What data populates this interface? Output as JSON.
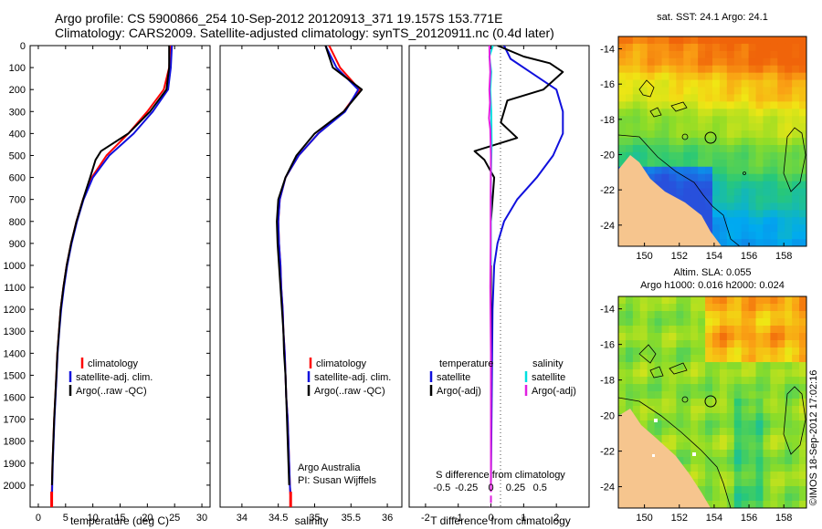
{
  "header": {
    "line1": "Argo profile: CS 5900866_254 10-Sep-2012 20120913_371 19.157S 153.771E",
    "line2": "Climatology: CARS2009. Satellite-adjusted climatology: synTS_20120911.nc (0.4d later)"
  },
  "colors": {
    "climatology": "#ff0000",
    "satellite": "#1010dd",
    "argo": "#000000",
    "satellite_s": "#00e0e0",
    "argo_s": "#e020e0"
  },
  "chart_data": [
    {
      "type": "line",
      "panel": "temperature",
      "xlabel": "temperature (deg C)",
      "ylabel": "",
      "xlim": [
        -1.5,
        31.5
      ],
      "ylim": [
        2100,
        0
      ],
      "xticks": [
        0,
        5,
        10,
        15,
        20,
        25,
        30
      ],
      "yticks": [
        0,
        100,
        200,
        300,
        400,
        500,
        600,
        700,
        800,
        900,
        1000,
        1100,
        1200,
        1300,
        1400,
        1500,
        1600,
        1700,
        1800,
        1900,
        2000
      ],
      "legend": [
        "climatology",
        "satellite-adj. clim.",
        "Argo(..raw -QC)"
      ],
      "series": [
        {
          "name": "climatology",
          "color_key": "climatology",
          "points": [
            [
              24.2,
              0
            ],
            [
              24.0,
              100
            ],
            [
              23.0,
              200
            ],
            [
              20.0,
              300
            ],
            [
              16.5,
              400
            ],
            [
              12.5,
              500
            ],
            [
              9.8,
              600
            ],
            [
              8.2,
              700
            ],
            [
              7.0,
              800
            ],
            [
              6.0,
              900
            ],
            [
              5.2,
              1000
            ],
            [
              4.6,
              1100
            ],
            [
              4.1,
              1200
            ],
            [
              3.8,
              1300
            ],
            [
              3.5,
              1400
            ],
            [
              3.3,
              1500
            ],
            [
              3.1,
              1600
            ],
            [
              2.9,
              1700
            ],
            [
              2.75,
              1800
            ],
            [
              2.6,
              1900
            ],
            [
              2.5,
              2000
            ],
            [
              2.45,
              2060
            ]
          ]
        },
        {
          "name": "satellite-adj. clim.",
          "color_key": "satellite",
          "points": [
            [
              24.5,
              0
            ],
            [
              24.3,
              100
            ],
            [
              23.8,
              200
            ],
            [
              21.0,
              300
            ],
            [
              17.5,
              400
            ],
            [
              13.0,
              500
            ],
            [
              10.0,
              600
            ],
            [
              8.3,
              700
            ],
            [
              7.1,
              800
            ],
            [
              6.1,
              900
            ],
            [
              5.3,
              1000
            ],
            [
              4.7,
              1100
            ],
            [
              4.2,
              1200
            ],
            [
              3.85,
              1300
            ],
            [
              3.55,
              1400
            ],
            [
              3.35,
              1500
            ],
            [
              3.15,
              1600
            ],
            [
              2.95,
              1700
            ],
            [
              2.8,
              1800
            ],
            [
              2.65,
              1900
            ],
            [
              2.55,
              2000
            ],
            [
              2.5,
              2060
            ]
          ]
        },
        {
          "name": "Argo(..raw -QC)",
          "color_key": "argo",
          "points": [
            [
              24.0,
              0
            ],
            [
              24.0,
              100
            ],
            [
              23.5,
              200
            ],
            [
              20.5,
              300
            ],
            [
              16.5,
              400
            ],
            [
              11.5,
              480
            ],
            [
              10.5,
              520
            ],
            [
              9.5,
              600
            ],
            [
              8.2,
              700
            ],
            [
              7.0,
              800
            ],
            [
              6.0,
              900
            ],
            [
              5.2,
              1000
            ],
            [
              4.6,
              1100
            ],
            [
              4.1,
              1200
            ],
            [
              3.8,
              1300
            ],
            [
              3.5,
              1400
            ],
            [
              3.3,
              1500
            ],
            [
              3.1,
              1600
            ],
            [
              2.9,
              1700
            ],
            [
              2.75,
              1800
            ],
            [
              2.6,
              1900
            ],
            [
              2.5,
              2000
            ]
          ]
        }
      ]
    },
    {
      "type": "line",
      "panel": "salinity",
      "xlabel": "salinity",
      "xlim": [
        33.7,
        36.2
      ],
      "ylim": [
        2100,
        0
      ],
      "xticks": [
        34,
        34.5,
        35,
        35.5,
        36
      ],
      "legend": [
        "climatology",
        "satellite-adj. clim.",
        "Argo(..raw -QC)"
      ],
      "annotation": [
        "Argo Australia",
        "PI: Susan Wijffels"
      ],
      "series": [
        {
          "name": "climatology",
          "color_key": "climatology",
          "points": [
            [
              35.2,
              0
            ],
            [
              35.35,
              100
            ],
            [
              35.62,
              200
            ],
            [
              35.4,
              300
            ],
            [
              35.05,
              400
            ],
            [
              34.78,
              500
            ],
            [
              34.6,
              600
            ],
            [
              34.52,
              700
            ],
            [
              34.5,
              800
            ],
            [
              34.51,
              900
            ],
            [
              34.53,
              1000
            ],
            [
              34.54,
              1100
            ],
            [
              34.56,
              1200
            ],
            [
              34.57,
              1300
            ],
            [
              34.59,
              1400
            ],
            [
              34.6,
              1500
            ],
            [
              34.61,
              1600
            ],
            [
              34.63,
              1700
            ],
            [
              34.64,
              1800
            ],
            [
              34.65,
              1900
            ],
            [
              34.66,
              2000
            ],
            [
              34.67,
              2060
            ]
          ]
        },
        {
          "name": "satellite-adj. clim.",
          "color_key": "satellite",
          "points": [
            [
              35.15,
              0
            ],
            [
              35.3,
              100
            ],
            [
              35.6,
              200
            ],
            [
              35.42,
              300
            ],
            [
              35.05,
              400
            ],
            [
              34.78,
              500
            ],
            [
              34.6,
              600
            ],
            [
              34.52,
              700
            ],
            [
              34.5,
              800
            ],
            [
              34.51,
              900
            ],
            [
              34.53,
              1000
            ],
            [
              34.54,
              1100
            ],
            [
              34.56,
              1200
            ],
            [
              34.57,
              1300
            ],
            [
              34.59,
              1400
            ],
            [
              34.6,
              1500
            ],
            [
              34.61,
              1600
            ],
            [
              34.63,
              1700
            ],
            [
              34.64,
              1800
            ],
            [
              34.65,
              1900
            ],
            [
              34.66,
              2000
            ],
            [
              34.67,
              2060
            ]
          ]
        },
        {
          "name": "Argo(..raw -QC)",
          "color_key": "argo",
          "points": [
            [
              35.15,
              0
            ],
            [
              35.25,
              100
            ],
            [
              35.65,
              200
            ],
            [
              35.4,
              300
            ],
            [
              35.0,
              400
            ],
            [
              34.75,
              500
            ],
            [
              34.6,
              600
            ],
            [
              34.5,
              700
            ],
            [
              34.48,
              800
            ],
            [
              34.49,
              900
            ],
            [
              34.51,
              1000
            ],
            [
              34.53,
              1100
            ],
            [
              34.55,
              1200
            ],
            [
              34.57,
              1300
            ],
            [
              34.58,
              1400
            ],
            [
              34.6,
              1500
            ],
            [
              34.61,
              1600
            ],
            [
              34.62,
              1700
            ],
            [
              34.63,
              1800
            ],
            [
              34.64,
              1900
            ],
            [
              34.65,
              2000
            ]
          ]
        }
      ]
    },
    {
      "type": "line",
      "panel": "difference",
      "xlabel": "T difference from climatology",
      "xlabel_top": "S difference from climatology",
      "xlim": [
        -2.5,
        3.0
      ],
      "ylim": [
        2100,
        0
      ],
      "xticks": [
        -2,
        -1,
        0,
        1,
        2
      ],
      "xticks_top_labels": [
        "-0.5",
        "-0.25",
        "0",
        "0.25",
        "0.5"
      ],
      "legend_headers": [
        "temperature",
        "salinity"
      ],
      "legend_t": [
        "satellite",
        "Argo(-adj)"
      ],
      "legend_s": [
        "satellite",
        "Argo(-adj)"
      ],
      "series": [
        {
          "name": "T satellite",
          "color_key": "satellite",
          "points": [
            [
              0.4,
              0
            ],
            [
              0.6,
              60
            ],
            [
              1.2,
              120
            ],
            [
              2.0,
              200
            ],
            [
              2.2,
              300
            ],
            [
              2.2,
              400
            ],
            [
              1.9,
              500
            ],
            [
              1.4,
              600
            ],
            [
              0.8,
              700
            ],
            [
              0.4,
              800
            ],
            [
              0.2,
              900
            ],
            [
              0.1,
              1000
            ],
            [
              0.05,
              1200
            ],
            [
              0.0,
              2000
            ]
          ]
        },
        {
          "name": "T Argo(-adj)",
          "color_key": "argo",
          "points": [
            [
              0.2,
              0
            ],
            [
              1.0,
              50
            ],
            [
              1.8,
              80
            ],
            [
              2.2,
              120
            ],
            [
              1.6,
              200
            ],
            [
              0.5,
              250
            ],
            [
              0.3,
              350
            ],
            [
              0.8,
              420
            ],
            [
              -0.5,
              480
            ],
            [
              -0.2,
              520
            ],
            [
              0.1,
              600
            ],
            [
              0.0,
              800
            ],
            [
              0.0,
              1200
            ],
            [
              0.0,
              2000
            ]
          ]
        },
        {
          "name": "S satellite",
          "color_key": "satellite_s",
          "points": [
            [
              0.06,
              0
            ],
            [
              -0.05,
              50
            ],
            [
              0.01,
              120
            ],
            [
              -0.02,
              200
            ],
            [
              0.01,
              300
            ],
            [
              0.02,
              450
            ],
            [
              0.0,
              600
            ],
            [
              0.0,
              1000
            ]
          ]
        },
        {
          "name": "S Argo(-adj)",
          "color_key": "argo_s",
          "points": [
            [
              -0.05,
              0
            ],
            [
              -0.04,
              60
            ],
            [
              -0.02,
              120
            ],
            [
              -0.05,
              200
            ],
            [
              -0.03,
              260
            ],
            [
              -0.06,
              330
            ],
            [
              -0.02,
              380
            ],
            [
              0.0,
              500
            ],
            [
              -0.01,
              700
            ],
            [
              -0.01,
              900
            ],
            [
              -0.02,
              1100
            ],
            [
              0.0,
              1400
            ],
            [
              0.0,
              1800
            ],
            [
              0.0,
              2000
            ]
          ]
        }
      ]
    },
    {
      "type": "heatmap",
      "panel": "sst-map",
      "title": "sat. SST: 24.1  Argo: 24.1",
      "xticks": [
        150,
        152,
        154,
        156,
        158
      ],
      "yticks": [
        -14,
        -16,
        -18,
        -20,
        -22,
        -24
      ],
      "xlim": [
        148.5,
        159.3
      ],
      "ylim": [
        -25.2,
        -13.3
      ]
    },
    {
      "type": "heatmap",
      "panel": "sla-map",
      "title_line1": "Altim. SLA: 0.055",
      "title_line2": "Argo h1000: 0.016 h2000: 0.024",
      "xticks": [
        150,
        152,
        154,
        156,
        158
      ],
      "yticks": [
        -14,
        -16,
        -18,
        -20,
        -22,
        -24
      ],
      "xlim": [
        148.5,
        159.3
      ],
      "ylim": [
        -25.2,
        -13.3
      ]
    }
  ],
  "footer": {
    "stamp": "©IMOS 18-Sep-2012 17:02:16"
  }
}
